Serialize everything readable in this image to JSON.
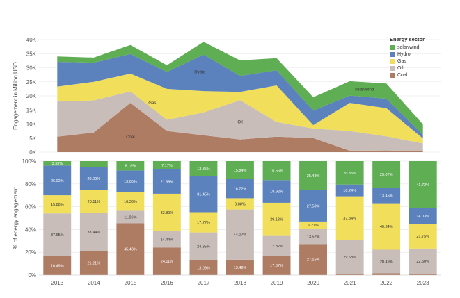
{
  "colors": {
    "solar_wind": "#5fae54",
    "hydro": "#5b82bc",
    "gas": "#f1de5b",
    "oil": "#c8bdb9",
    "coal": "#ae7b63"
  },
  "legend": {
    "title": "Energy sector",
    "items": [
      {
        "key": "solar_wind",
        "label": "solar/wind"
      },
      {
        "key": "hydro",
        "label": "Hydro"
      },
      {
        "key": "gas",
        "label": "Gas"
      },
      {
        "key": "oil",
        "label": "Oil"
      },
      {
        "key": "coal",
        "label": "Coal"
      }
    ]
  },
  "chart_data": [
    {
      "type": "area",
      "stacked": true,
      "ylabel": "Engagement in Million USD",
      "ylim": [
        0,
        40000
      ],
      "y_ticks": [
        "0K",
        "5K",
        "10K",
        "15K",
        "20K",
        "25K",
        "30K",
        "35K",
        "40K"
      ],
      "x": [
        2013,
        2014,
        2015,
        2016,
        2017,
        2018,
        2019,
        2020,
        2021,
        2022,
        2023
      ],
      "grid": true,
      "series": [
        {
          "name": "Coal",
          "key": "coal",
          "values": [
            5500,
            7000,
            17500,
            7500,
            6000,
            4500,
            5500,
            5000,
            500,
            600,
            300
          ]
        },
        {
          "name": "Oil",
          "key": "oil",
          "values": [
            12500,
            11400,
            4100,
            4000,
            8100,
            14000,
            5200,
            3400,
            7000,
            5000,
            2800
          ]
        },
        {
          "name": "Gas",
          "key": "gas",
          "values": [
            5300,
            6600,
            6300,
            11000,
            7600,
            2900,
            13000,
            1200,
            10000,
            10000,
            1800
          ]
        },
        {
          "name": "Hydro",
          "key": "hydro",
          "values": [
            8800,
            6800,
            7000,
            6000,
            13000,
            5700,
            5400,
            5200,
            2600,
            3400,
            1300
          ]
        },
        {
          "name": "solar/wind",
          "key": "solar_wind",
          "values": [
            1900,
            1800,
            3200,
            2400,
            4500,
            5500,
            4300,
            4700,
            5100,
            5400,
            3700
          ]
        }
      ],
      "area_labels": [
        {
          "text": "Hydro",
          "x": 2016.9,
          "y": 28000
        },
        {
          "text": "Gas",
          "x": 2015.6,
          "y": 17000
        },
        {
          "text": "Oil",
          "x": 2018.0,
          "y": 10300
        },
        {
          "text": "Coal",
          "x": 2015.0,
          "y": 5000
        },
        {
          "text": "solar/wind",
          "x": 2021.4,
          "y": 21800
        }
      ]
    },
    {
      "type": "bar",
      "stacked": true,
      "ylabel": "% of energy engagement",
      "ylim": [
        0,
        100
      ],
      "y_ticks": [
        "0%",
        "20%",
        "40%",
        "60%",
        "80%",
        "100%"
      ],
      "categories": [
        "2013",
        "2014",
        "2015",
        "2016",
        "2017",
        "2018",
        "2019",
        "2020",
        "2021",
        "2022",
        "2023"
      ],
      "grid": true,
      "series": [
        {
          "name": "Coal",
          "key": "coal",
          "values": [
            16.49,
            21.21,
            45.43,
            24.11,
            13.09,
            13.49,
            17.07,
            27.15,
            1.0,
            1.5,
            1.0
          ],
          "labels": [
            "16.49%",
            "21.21%",
            "45.43%",
            "24.11%",
            "13.09%",
            "13.49%",
            "17.07%",
            "27.15%",
            "",
            "",
            ""
          ]
        },
        {
          "name": "Oil",
          "key": "oil",
          "values": [
            37.65,
            33.44,
            11.06,
            14.44,
            24.35,
            44.07,
            17.32,
            13.57,
            29.68,
            20.49,
            22.5
          ],
          "labels": [
            "37.65%",
            "33.44%",
            "11.06%",
            "14.44%",
            "24.35%",
            "44.07%",
            "17.32%",
            "13.57%",
            "29.68%",
            "20.49%",
            "22.50%"
          ]
        },
        {
          "name": "Gas",
          "key": "gas",
          "values": [
            15.88,
            20.11,
            16.33,
            32.89,
            17.77,
            9.88,
            29.13,
            6.27,
            37.84,
            40.34,
            21.75
          ],
          "labels": [
            "15.88%",
            "20.11%",
            "16.33%",
            "32.89%",
            "17.77%",
            "9.88%",
            "29.13%",
            "6.27%",
            "37.84%",
            "40.34%",
            "21.75%"
          ]
        },
        {
          "name": "Hydro",
          "key": "hydro",
          "values": [
            26.02,
            20.09,
            19.0,
            21.39,
            31.45,
            16.72,
            19.92,
            27.58,
            10.24,
            13.45,
            14.03
          ],
          "labels": [
            "26.02%",
            "20.09%",
            "19.00%",
            "21.39%",
            "31.45%",
            "16.72%",
            "19.92%",
            "27.58%",
            "10.24%",
            "13.45%",
            "14.03%"
          ]
        },
        {
          "name": "solar/wind",
          "key": "solar_wind",
          "values": [
            3.93,
            5.15,
            8.18,
            7.17,
            13.35,
            15.84,
            16.56,
            25.43,
            20.35,
            23.07,
            41.72
          ],
          "labels": [
            "3.93%",
            "",
            "8.18%",
            "7.17%",
            "13.35%",
            "15.84%",
            "16.56%",
            "25.43%",
            "20.35%",
            "23.07%",
            "41.72%"
          ]
        }
      ]
    }
  ]
}
